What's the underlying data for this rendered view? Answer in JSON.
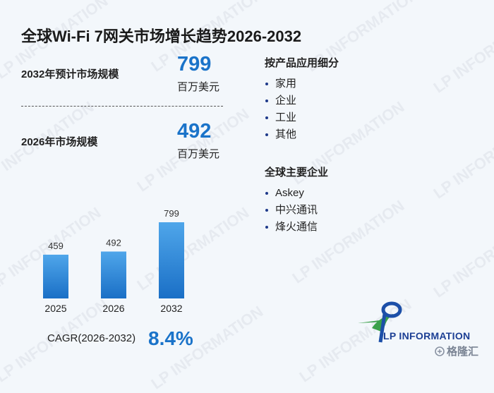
{
  "title": "全球Wi-Fi 7网关市场增长趋势2026-2032",
  "metrics": [
    {
      "label": "2032年预计市场规模",
      "value": "799",
      "unit": "百万美元"
    },
    {
      "label": "2026年市场规模",
      "value": "492",
      "unit": "百万美元"
    }
  ],
  "chart_data": {
    "type": "bar",
    "categories": [
      "2025",
      "2026",
      "2032"
    ],
    "values": [
      459,
      492,
      799
    ],
    "value_labels": [
      "459",
      "492",
      "799"
    ],
    "title": "",
    "xlabel": "",
    "ylabel": "",
    "ylim": [
      0,
      800
    ],
    "colors": {
      "top": "#4fa6ea",
      "bottom": "#1a6fc6"
    },
    "grid": false,
    "legend": "none"
  },
  "cagr": {
    "label": "CAGR(2026-2032)",
    "value": "8.4%"
  },
  "segments": {
    "title": "按产品应用细分",
    "items": [
      "家用",
      "企业",
      "工业",
      "其他"
    ]
  },
  "companies": {
    "title": "全球主要企业",
    "items": [
      "Askey",
      "中兴通讯",
      "烽火通信"
    ]
  },
  "logo": {
    "text": "LP INFORMATION"
  },
  "watermark": "LP INFORMATION",
  "corner_text": "格隆汇",
  "accent_color": "#1a73c9"
}
